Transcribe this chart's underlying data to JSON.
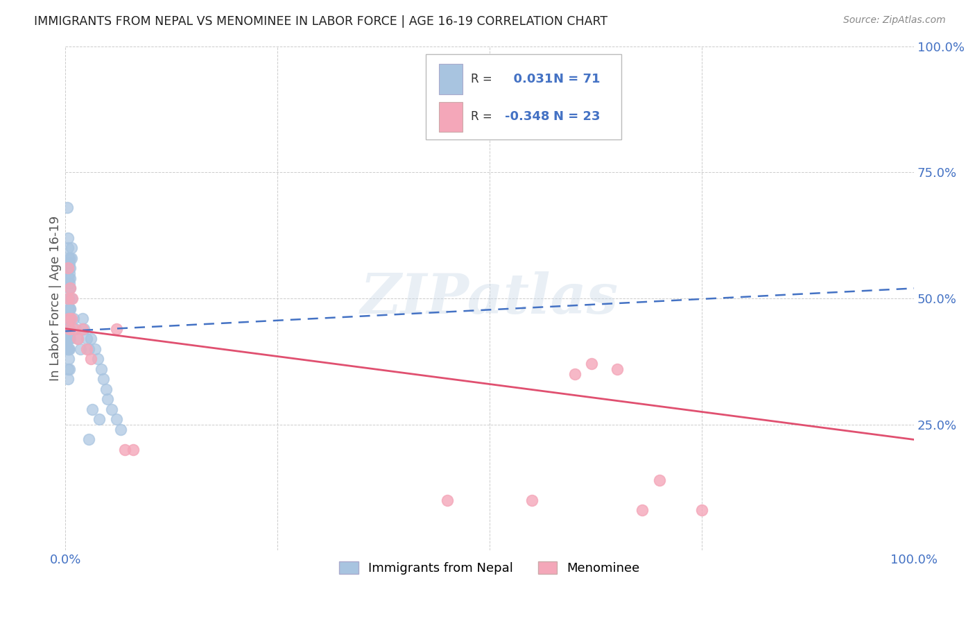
{
  "title": "IMMIGRANTS FROM NEPAL VS MENOMINEE IN LABOR FORCE | AGE 16-19 CORRELATION CHART",
  "source": "Source: ZipAtlas.com",
  "ylabel": "In Labor Force | Age 16-19",
  "r_nepal": 0.031,
  "n_nepal": 71,
  "r_menominee": -0.348,
  "n_menominee": 23,
  "xlim": [
    0,
    1.0
  ],
  "ylim": [
    0,
    1.0
  ],
  "color_nepal": "#a8c4e0",
  "color_menominee": "#f4a7b9",
  "trendline_nepal_color": "#4472c4",
  "trendline_menominee_color": "#e05070",
  "background_color": "#ffffff",
  "watermark": "ZIPatlas",
  "nepal_x": [
    0.002,
    0.003,
    0.003,
    0.004,
    0.004,
    0.004,
    0.005,
    0.005,
    0.005,
    0.005,
    0.006,
    0.006,
    0.006,
    0.007,
    0.007,
    0.002,
    0.003,
    0.004,
    0.005,
    0.006,
    0.003,
    0.004,
    0.005,
    0.006,
    0.007,
    0.003,
    0.004,
    0.005,
    0.002,
    0.003,
    0.004,
    0.005,
    0.006,
    0.003,
    0.004,
    0.005,
    0.004,
    0.003,
    0.004,
    0.005,
    0.006,
    0.003,
    0.004,
    0.005,
    0.003,
    0.004,
    0.005,
    0.006,
    0.003,
    0.005,
    0.01,
    0.012,
    0.015,
    0.018,
    0.02,
    0.022,
    0.025,
    0.028,
    0.03,
    0.035,
    0.038,
    0.042,
    0.045,
    0.048,
    0.05,
    0.055,
    0.06,
    0.065,
    0.04,
    0.032,
    0.028
  ],
  "nepal_y": [
    0.68,
    0.62,
    0.6,
    0.58,
    0.56,
    0.54,
    0.57,
    0.55,
    0.53,
    0.52,
    0.58,
    0.56,
    0.54,
    0.6,
    0.58,
    0.44,
    0.46,
    0.44,
    0.46,
    0.48,
    0.5,
    0.48,
    0.5,
    0.52,
    0.5,
    0.42,
    0.44,
    0.46,
    0.42,
    0.44,
    0.42,
    0.44,
    0.46,
    0.4,
    0.42,
    0.44,
    0.4,
    0.42,
    0.44,
    0.46,
    0.48,
    0.4,
    0.42,
    0.44,
    0.36,
    0.38,
    0.4,
    0.42,
    0.34,
    0.36,
    0.46,
    0.44,
    0.42,
    0.4,
    0.46,
    0.44,
    0.42,
    0.4,
    0.42,
    0.4,
    0.38,
    0.36,
    0.34,
    0.32,
    0.3,
    0.28,
    0.26,
    0.24,
    0.26,
    0.28,
    0.22
  ],
  "menominee_x": [
    0.003,
    0.003,
    0.004,
    0.005,
    0.006,
    0.007,
    0.008,
    0.01,
    0.015,
    0.02,
    0.025,
    0.03,
    0.06,
    0.07,
    0.08,
    0.45,
    0.55,
    0.6,
    0.62,
    0.65,
    0.68,
    0.7,
    0.75
  ],
  "menominee_y": [
    0.56,
    0.5,
    0.46,
    0.44,
    0.52,
    0.46,
    0.5,
    0.44,
    0.42,
    0.44,
    0.4,
    0.38,
    0.44,
    0.2,
    0.2,
    0.1,
    0.1,
    0.35,
    0.37,
    0.36,
    0.08,
    0.14,
    0.08
  ],
  "nepal_trend_x0": 0.0,
  "nepal_trend_y0": 0.435,
  "nepal_trend_x1": 1.0,
  "nepal_trend_y1": 0.52,
  "meno_trend_x0": 0.0,
  "meno_trend_y0": 0.44,
  "meno_trend_x1": 1.0,
  "meno_trend_y1": 0.22
}
